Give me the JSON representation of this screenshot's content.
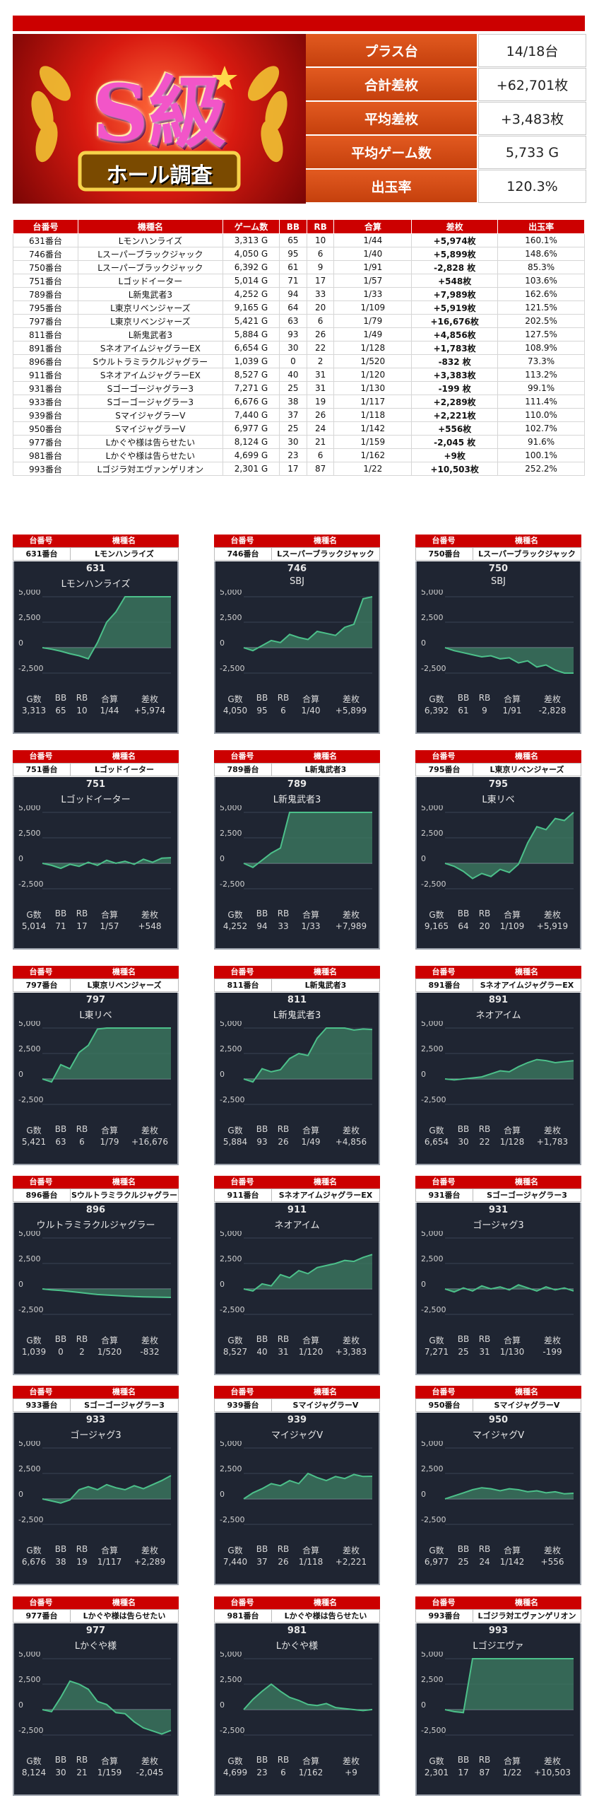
{
  "logo": {
    "big": "S級",
    "sub": "ホール調査"
  },
  "summary": [
    {
      "label": "プラス台",
      "value": "14/18台"
    },
    {
      "label": "合計差枚",
      "value": "+62,701枚"
    },
    {
      "label": "平均差枚",
      "value": "+3,483枚"
    },
    {
      "label": "平均ゲーム数",
      "value": "5,733 G"
    },
    {
      "label": "出玉率",
      "value": "120.3%"
    }
  ],
  "table": {
    "headers": [
      "台番号",
      "機種名",
      "ゲーム数",
      "BB",
      "RB",
      "合算",
      "差枚",
      "出玉率"
    ],
    "rows": [
      [
        "631番台",
        "Lモンハンライズ",
        "3,313 G",
        "65",
        "10",
        "1/44",
        "+5,974枚",
        "160.1%"
      ],
      [
        "746番台",
        "Lスーパーブラックジャック",
        "4,050 G",
        "95",
        "6",
        "1/40",
        "+5,899枚",
        "148.6%"
      ],
      [
        "750番台",
        "Lスーパーブラックジャック",
        "6,392 G",
        "61",
        "9",
        "1/91",
        "-2,828 枚",
        "85.3%"
      ],
      [
        "751番台",
        "Lゴッドイーター",
        "5,014 G",
        "71",
        "17",
        "1/57",
        "+548枚",
        "103.6%"
      ],
      [
        "789番台",
        "L新鬼武者3",
        "4,252 G",
        "94",
        "33",
        "1/33",
        "+7,989枚",
        "162.6%"
      ],
      [
        "795番台",
        "L東京リベンジャーズ",
        "9,165 G",
        "64",
        "20",
        "1/109",
        "+5,919枚",
        "121.5%"
      ],
      [
        "797番台",
        "L東京リベンジャーズ",
        "5,421 G",
        "63",
        "6",
        "1/79",
        "+16,676枚",
        "202.5%"
      ],
      [
        "811番台",
        "L新鬼武者3",
        "5,884 G",
        "93",
        "26",
        "1/49",
        "+4,856枚",
        "127.5%"
      ],
      [
        "891番台",
        "SネオアイムジャグラーEX",
        "6,654 G",
        "30",
        "22",
        "1/128",
        "+1,783枚",
        "108.9%"
      ],
      [
        "896番台",
        "Sウルトラミラクルジャグラー",
        "1,039 G",
        "0",
        "2",
        "1/520",
        "-832 枚",
        "73.3%"
      ],
      [
        "911番台",
        "SネオアイムジャグラーEX",
        "8,527 G",
        "40",
        "31",
        "1/120",
        "+3,383枚",
        "113.2%"
      ],
      [
        "931番台",
        "Sゴーゴージャグラー3",
        "7,271 G",
        "25",
        "31",
        "1/130",
        "-199 枚",
        "99.1%"
      ],
      [
        "933番台",
        "Sゴーゴージャグラー3",
        "6,676 G",
        "38",
        "19",
        "1/117",
        "+2,289枚",
        "111.4%"
      ],
      [
        "939番台",
        "SマイジャグラーV",
        "7,440 G",
        "37",
        "26",
        "1/118",
        "+2,221枚",
        "110.0%"
      ],
      [
        "950番台",
        "SマイジャグラーV",
        "6,977 G",
        "25",
        "24",
        "1/142",
        "+556枚",
        "102.7%"
      ],
      [
        "977番台",
        "Lかぐや様は告らせたい",
        "8,124 G",
        "30",
        "21",
        "1/159",
        "-2,045 枚",
        "91.6%"
      ],
      [
        "981番台",
        "Lかぐや様は告らせたい",
        "4,699 G",
        "23",
        "6",
        "1/162",
        "+9枚",
        "100.1%"
      ],
      [
        "993番台",
        "Lゴジラ対エヴァンゲリオン",
        "2,301 G",
        "17",
        "87",
        "1/22",
        "+10,503枚",
        "252.2%"
      ]
    ]
  },
  "card_labels": {
    "head_num": "台番号",
    "head_name": "機種名",
    "stats": [
      "G数",
      "BB",
      "RB",
      "合算",
      "差枚"
    ]
  },
  "chart_colors": {
    "bg": "#1f2532",
    "line": "#4cc08a",
    "fill": "#3d7d63"
  },
  "chart_data": [
    {
      "type": "line",
      "tag": "631番台",
      "model": "Lモンハンライズ",
      "num": "631",
      "short": "Lモンハンライズ",
      "ticks": [
        "5,000",
        "2,500",
        "0",
        "-2,500"
      ],
      "ylim": [
        -2500,
        5000
      ],
      "values": [
        0,
        -150,
        -350,
        -600,
        -800,
        -1100,
        500,
        2500,
        3500,
        5000,
        5000,
        5000,
        5000,
        5000,
        5000
      ],
      "stats": [
        "3,313",
        "65",
        "10",
        "1/44",
        "+5,974"
      ]
    },
    {
      "type": "line",
      "tag": "746番台",
      "model": "Lスーパーブラックジャック",
      "num": "746",
      "short": "SBJ",
      "ticks": [
        "5,000",
        "2,500",
        "0",
        "-2,500"
      ],
      "ylim": [
        -2500,
        5000
      ],
      "values": [
        0,
        -300,
        200,
        700,
        500,
        1300,
        1000,
        800,
        1600,
        1400,
        1200,
        2000,
        2300,
        4800,
        5000
      ],
      "stats": [
        "4,050",
        "95",
        "6",
        "1/40",
        "+5,899"
      ]
    },
    {
      "type": "line",
      "tag": "750番台",
      "model": "Lスーパーブラックジャック",
      "num": "750",
      "short": "SBJ",
      "ticks": [
        "5,000",
        "2,500",
        "0",
        "-2,500"
      ],
      "ylim": [
        -2500,
        5000
      ],
      "values": [
        0,
        -300,
        -500,
        -700,
        -900,
        -800,
        -1100,
        -1000,
        -1500,
        -1300,
        -1900,
        -1700,
        -2200,
        -2700,
        -2828
      ],
      "stats": [
        "6,392",
        "61",
        "9",
        "1/91",
        "-2,828"
      ]
    },
    {
      "type": "line",
      "tag": "751番台",
      "model": "Lゴッドイーター",
      "num": "751",
      "short": "Lゴッドイーター",
      "ticks": [
        "5,000",
        "2,500",
        "0",
        "-2,500"
      ],
      "ylim": [
        -2500,
        5000
      ],
      "values": [
        0,
        -200,
        -500,
        -100,
        -300,
        100,
        -200,
        300,
        0,
        200,
        -100,
        400,
        100,
        500,
        548
      ],
      "stats": [
        "5,014",
        "71",
        "17",
        "1/57",
        "+548"
      ]
    },
    {
      "type": "line",
      "tag": "789番台",
      "model": "L新鬼武者3",
      "num": "789",
      "short": "L新鬼武者3",
      "ticks": [
        "5,000",
        "2,500",
        "0",
        "-2,500"
      ],
      "ylim": [
        -2500,
        5000
      ],
      "values": [
        0,
        -400,
        300,
        1000,
        1500,
        5000,
        5000,
        5000,
        5000,
        5000,
        5000,
        5000,
        5000,
        5000,
        5000
      ],
      "stats": [
        "4,252",
        "94",
        "33",
        "1/33",
        "+7,989"
      ]
    },
    {
      "type": "line",
      "tag": "795番台",
      "model": "L東京リベンジャーズ",
      "num": "795",
      "short": "L東リベ",
      "ticks": [
        "5,000",
        "2,500",
        "0",
        "-2,500"
      ],
      "ylim": [
        -2500,
        5000
      ],
      "values": [
        0,
        -300,
        -800,
        -1500,
        -1000,
        -1300,
        -600,
        -900,
        -100,
        2000,
        3600,
        3300,
        4400,
        4200,
        5000
      ],
      "stats": [
        "9,165",
        "64",
        "20",
        "1/109",
        "+5,919"
      ]
    },
    {
      "type": "line",
      "tag": "797番台",
      "model": "L東京リベンジャーズ",
      "num": "797",
      "short": "L東リベ",
      "ticks": [
        "5,000",
        "2,500",
        "0",
        "-2,500"
      ],
      "ylim": [
        -2500,
        5000
      ],
      "values": [
        0,
        -300,
        1400,
        1000,
        2600,
        3300,
        4900,
        5000,
        5000,
        5000,
        5000,
        5000,
        5000,
        5000,
        5000
      ],
      "stats": [
        "5,421",
        "63",
        "6",
        "1/79",
        "+16,676"
      ]
    },
    {
      "type": "line",
      "tag": "811番台",
      "model": "L新鬼武者3",
      "num": "811",
      "short": "L新鬼武者3",
      "ticks": [
        "5,000",
        "2,500",
        "0",
        "-2,500"
      ],
      "ylim": [
        -2500,
        5000
      ],
      "values": [
        0,
        -300,
        1000,
        700,
        900,
        2000,
        2500,
        2300,
        4000,
        5000,
        5000,
        5000,
        4800,
        4900,
        4856
      ],
      "stats": [
        "5,884",
        "93",
        "26",
        "1/49",
        "+4,856"
      ]
    },
    {
      "type": "line",
      "tag": "891番台",
      "model": "SネオアイムジャグラーEX",
      "num": "891",
      "short": "ネオアイム",
      "ticks": [
        "5,000",
        "2,500",
        "0",
        "-2,500"
      ],
      "ylim": [
        -2500,
        5000
      ],
      "values": [
        0,
        -100,
        0,
        100,
        200,
        500,
        800,
        700,
        1200,
        1600,
        1900,
        1800,
        1600,
        1700,
        1783
      ],
      "stats": [
        "6,654",
        "30",
        "22",
        "1/128",
        "+1,783"
      ]
    },
    {
      "type": "line",
      "tag": "896番台",
      "model": "Sウルトラミラクルジャグラー",
      "num": "896",
      "short": "ウルトラミラクルジャグラー",
      "ticks": [
        "5,000",
        "2,500",
        "0",
        "-2,500"
      ],
      "ylim": [
        -2500,
        5000
      ],
      "values": [
        0,
        -100,
        -150,
        -250,
        -350,
        -450,
        -550,
        -600,
        -650,
        -700,
        -750,
        -780,
        -800,
        -820,
        -832
      ],
      "stats": [
        "1,039",
        "0",
        "2",
        "1/520",
        "-832"
      ]
    },
    {
      "type": "line",
      "tag": "911番台",
      "model": "SネオアイムジャグラーEX",
      "num": "911",
      "short": "ネオアイム",
      "ticks": [
        "5,000",
        "2,500",
        "0",
        "-2,500"
      ],
      "ylim": [
        -2500,
        5000
      ],
      "values": [
        0,
        -200,
        500,
        300,
        1400,
        1100,
        1800,
        1500,
        2100,
        2300,
        2500,
        2800,
        2700,
        3100,
        3383
      ],
      "stats": [
        "8,527",
        "40",
        "31",
        "1/120",
        "+3,383"
      ]
    },
    {
      "type": "line",
      "tag": "931番台",
      "model": "Sゴーゴージャグラー3",
      "num": "931",
      "short": "ゴージャグ3",
      "ticks": [
        "5,000",
        "2,500",
        "0",
        "-2,500"
      ],
      "ylim": [
        -2500,
        5000
      ],
      "values": [
        0,
        -300,
        100,
        -200,
        300,
        0,
        200,
        -100,
        400,
        100,
        -200,
        200,
        -100,
        100,
        -199
      ],
      "stats": [
        "7,271",
        "25",
        "31",
        "1/130",
        "-199"
      ]
    },
    {
      "type": "line",
      "tag": "933番台",
      "model": "Sゴーゴージャグラー3",
      "num": "933",
      "short": "ゴージャグ3",
      "ticks": [
        "5,000",
        "2,500",
        "0",
        "-2,500"
      ],
      "ylim": [
        -2500,
        5000
      ],
      "values": [
        0,
        -200,
        -400,
        -100,
        900,
        1200,
        900,
        1400,
        1100,
        900,
        1300,
        1000,
        1400,
        1800,
        2289
      ],
      "stats": [
        "6,676",
        "38",
        "19",
        "1/117",
        "+2,289"
      ]
    },
    {
      "type": "line",
      "tag": "939番台",
      "model": "SマイジャグラーV",
      "num": "939",
      "short": "マイジャグV",
      "ticks": [
        "5,000",
        "2,500",
        "0",
        "-2,500"
      ],
      "ylim": [
        -2500,
        5000
      ],
      "values": [
        0,
        600,
        1000,
        1500,
        1300,
        1800,
        1500,
        2500,
        2100,
        1800,
        2200,
        2000,
        2400,
        2200,
        2221
      ],
      "stats": [
        "7,440",
        "37",
        "26",
        "1/118",
        "+2,221"
      ]
    },
    {
      "type": "line",
      "tag": "950番台",
      "model": "SマイジャグラーV",
      "num": "950",
      "short": "マイジャグV",
      "ticks": [
        "5,000",
        "2,500",
        "0",
        "-2,500"
      ],
      "ylim": [
        -2500,
        5000
      ],
      "values": [
        0,
        300,
        600,
        900,
        1100,
        1000,
        800,
        1000,
        900,
        700,
        800,
        600,
        700,
        500,
        556
      ],
      "stats": [
        "6,977",
        "25",
        "24",
        "1/142",
        "+556"
      ]
    },
    {
      "type": "line",
      "tag": "977番台",
      "model": "Lかぐや様は告らせたい",
      "num": "977",
      "short": "Lかぐや様",
      "ticks": [
        "5,000",
        "2,500",
        "0",
        "-2,500"
      ],
      "ylim": [
        -2500,
        5000
      ],
      "values": [
        0,
        -200,
        1200,
        2800,
        2500,
        2000,
        800,
        500,
        -300,
        -400,
        -1200,
        -1800,
        -2100,
        -2400,
        -2045
      ],
      "stats": [
        "8,124",
        "30",
        "21",
        "1/159",
        "-2,045"
      ]
    },
    {
      "type": "line",
      "tag": "981番台",
      "model": "Lかぐや様は告らせたい",
      "num": "981",
      "short": "Lかぐや様",
      "ticks": [
        "5,000",
        "2,500",
        "0",
        "-2,500"
      ],
      "ylim": [
        -2500,
        5000
      ],
      "values": [
        0,
        1000,
        1800,
        2500,
        1800,
        1200,
        900,
        500,
        400,
        600,
        200,
        100,
        0,
        -100,
        9
      ],
      "stats": [
        "4,699",
        "23",
        "6",
        "1/162",
        "+9"
      ]
    },
    {
      "type": "line",
      "tag": "993番台",
      "model": "Lゴジラ対エヴァンゲリオン",
      "num": "993",
      "short": "Lゴジエヴァ",
      "ticks": [
        "5,000",
        "2,500",
        "0",
        "-2,500"
      ],
      "ylim": [
        -2500,
        5000
      ],
      "values": [
        0,
        -200,
        -300,
        5000,
        5000,
        5000,
        5000,
        5000,
        5000,
        5000,
        5000,
        5000,
        5000,
        5000,
        5000
      ],
      "stats": [
        "2,301",
        "17",
        "87",
        "1/22",
        "+10,503"
      ]
    }
  ]
}
